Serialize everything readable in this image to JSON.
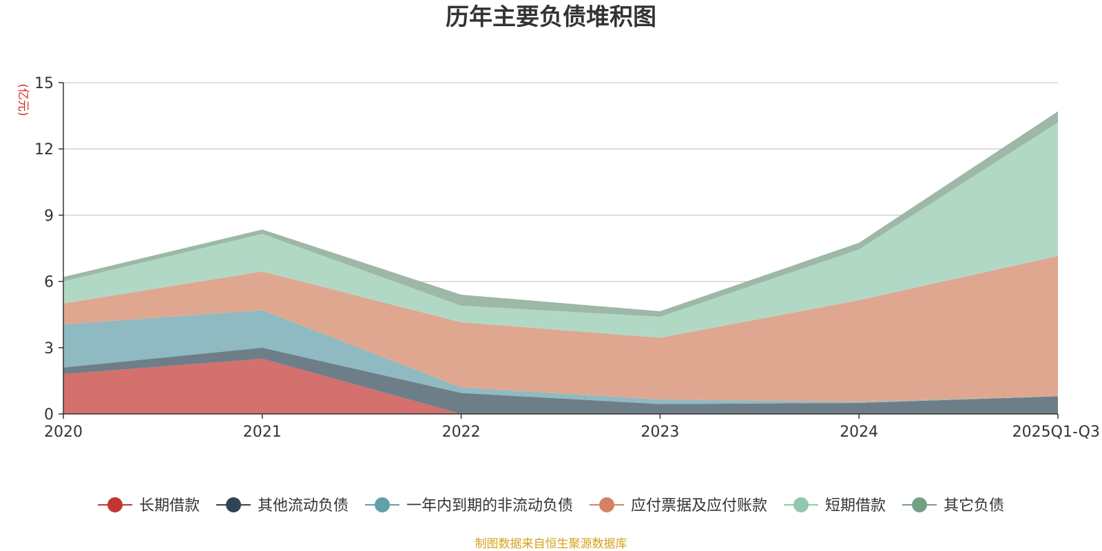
{
  "chart_data": {
    "type": "area",
    "stacked": true,
    "title": "历年主要负债堆积图",
    "unit_label": "(亿元)",
    "xlabel": "",
    "ylabel": "(亿元)",
    "ylim": [
      0,
      15
    ],
    "yticks": [
      0,
      3,
      6,
      9,
      12,
      15
    ],
    "grid": true,
    "categories": [
      "2020",
      "2021",
      "2022",
      "2023",
      "2024",
      "2025Q1-Q3"
    ],
    "series": [
      {
        "name": "长期借款",
        "color": "#c23531",
        "area_color": "#d4706d",
        "values": [
          1.8,
          2.5,
          0.0,
          0.0,
          0.0,
          0.0
        ]
      },
      {
        "name": "其他流动负债",
        "color": "#2f4554",
        "area_color": "#6e7e89",
        "values": [
          0.3,
          0.5,
          0.95,
          0.45,
          0.5,
          0.8
        ]
      },
      {
        "name": "一年内到期的非流动负债",
        "color": "#61a0a8",
        "area_color": "#8fbac1",
        "values": [
          1.95,
          1.7,
          0.25,
          0.2,
          0.05,
          0.0
        ]
      },
      {
        "name": "应付票据及应付账款",
        "color": "#d48265",
        "area_color": "#dfa790",
        "values": [
          0.95,
          1.75,
          2.95,
          2.8,
          4.6,
          6.35
        ]
      },
      {
        "name": "短期借款",
        "color": "#91c7ae",
        "area_color": "#b1d8c5",
        "values": [
          1.0,
          1.7,
          0.75,
          0.95,
          2.3,
          6.05
        ]
      },
      {
        "name": "其它负债",
        "color": "#749f83",
        "area_color": "#9db8a6",
        "values": [
          0.2,
          0.2,
          0.5,
          0.25,
          0.3,
          0.5
        ]
      }
    ],
    "legend_position": "bottom",
    "source_note": "制图数据来自恒生聚源数据库"
  }
}
